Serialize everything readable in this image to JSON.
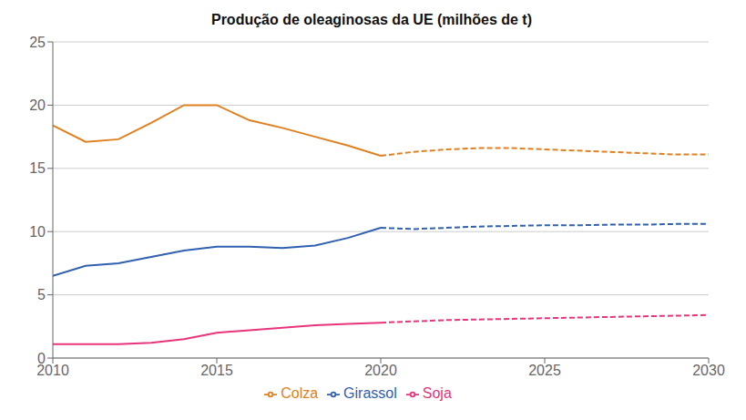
{
  "chart_data": {
    "type": "line",
    "title": "Produção de oleaginosas da UE (milhões de t)",
    "x": [
      2010,
      2011,
      2012,
      2013,
      2014,
      2015,
      2016,
      2017,
      2018,
      2019,
      2020,
      2021,
      2022,
      2023,
      2024,
      2025,
      2026,
      2027,
      2028,
      2029,
      2030
    ],
    "series": [
      {
        "name": "Soja",
        "color": "#e8347c",
        "line_style": "solid",
        "values": [
          1.1,
          1.1,
          1.1,
          1.2,
          1.5,
          2.0,
          2.2,
          2.4,
          2.6,
          2.7,
          2.8,
          null,
          null,
          null,
          null,
          null,
          null,
          null,
          null,
          null,
          null
        ]
      },
      {
        "name": "Soja",
        "color": "#e8347c",
        "line_style": "dashed",
        "values": [
          null,
          null,
          null,
          null,
          null,
          null,
          null,
          null,
          null,
          null,
          2.8,
          2.9,
          3.0,
          3.05,
          3.1,
          3.15,
          3.2,
          3.25,
          3.3,
          3.35,
          3.4
        ]
      },
      {
        "name": "Colza",
        "color": "#e08020",
        "line_style": "solid",
        "values": [
          18.4,
          17.1,
          17.3,
          18.6,
          20.0,
          20.0,
          18.8,
          18.2,
          17.5,
          16.8,
          16.0,
          null,
          null,
          null,
          null,
          null,
          null,
          null,
          null,
          null,
          null
        ]
      },
      {
        "name": "Colza",
        "color": "#e08020",
        "line_style": "dashed",
        "values": [
          null,
          null,
          null,
          null,
          null,
          null,
          null,
          null,
          null,
          null,
          16.0,
          16.3,
          16.5,
          16.6,
          16.6,
          16.5,
          16.4,
          16.3,
          16.2,
          16.1,
          16.1
        ]
      },
      {
        "name": "Girassol",
        "color": "#3060b0",
        "line_style": "solid",
        "values": [
          6.5,
          7.3,
          7.5,
          8.0,
          8.5,
          8.8,
          8.8,
          8.7,
          8.9,
          9.5,
          10.3,
          null,
          null,
          null,
          null,
          null,
          null,
          null,
          null,
          null,
          null
        ]
      },
      {
        "name": "Girassol",
        "color": "#3060b0",
        "line_style": "dashed",
        "values": [
          null,
          null,
          null,
          null,
          null,
          null,
          null,
          null,
          null,
          null,
          10.3,
          10.2,
          10.3,
          10.4,
          10.45,
          10.5,
          10.5,
          10.55,
          10.55,
          10.6,
          10.6
        ]
      }
    ],
    "xlim": [
      2010,
      2030
    ],
    "ylim": [
      0,
      25
    ],
    "xticks": [
      2010,
      2015,
      2020,
      2025,
      2030
    ],
    "yticks": [
      0,
      5,
      10,
      15,
      20,
      25
    ],
    "grid": "y",
    "legend": "bottom"
  }
}
